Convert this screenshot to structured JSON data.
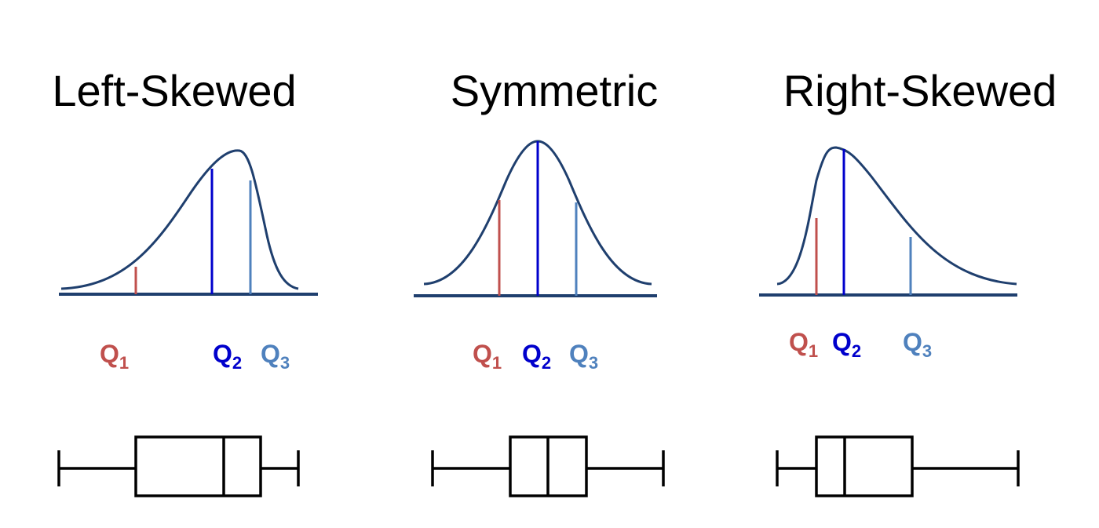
{
  "panels": [
    {
      "title": "Left-Skewed",
      "quartiles": [
        {
          "label": "Q",
          "subscript": "1"
        },
        {
          "label": "Q",
          "subscript": "2"
        },
        {
          "label": "Q",
          "subscript": "3"
        }
      ]
    },
    {
      "title": "Symmetric",
      "quartiles": [
        {
          "label": "Q",
          "subscript": "1"
        },
        {
          "label": "Q",
          "subscript": "2"
        },
        {
          "label": "Q",
          "subscript": "3"
        }
      ]
    },
    {
      "title": "Right-Skewed",
      "quartiles": [
        {
          "label": "Q",
          "subscript": "1"
        },
        {
          "label": "Q",
          "subscript": "2"
        },
        {
          "label": "Q",
          "subscript": "3"
        }
      ]
    }
  ]
}
